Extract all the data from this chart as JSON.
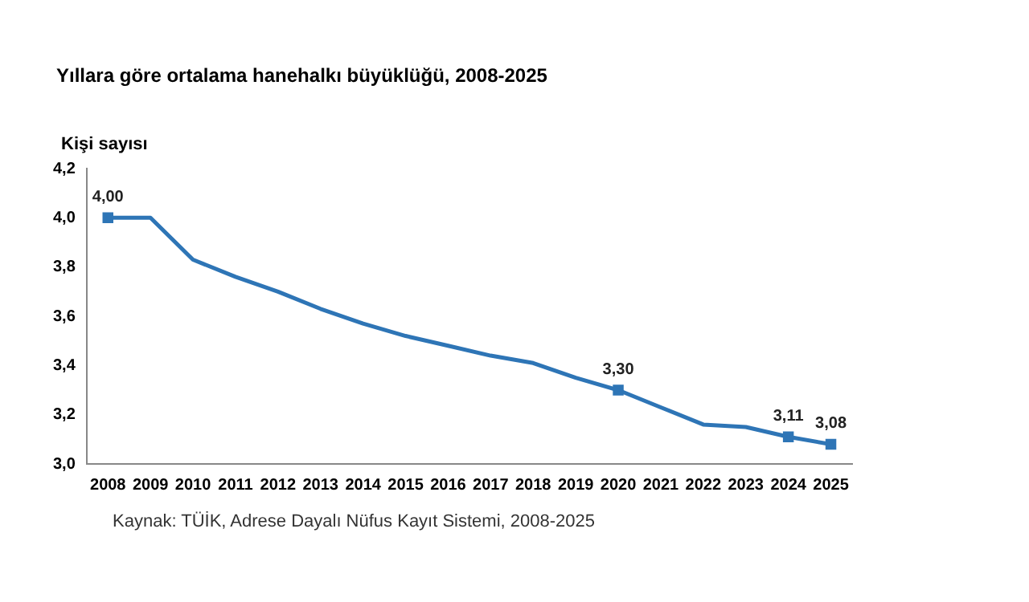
{
  "chart_data": {
    "type": "line",
    "title": "Yıllara göre ortalama hanehalkı büyüklüğü, 2008-2025",
    "ylabel": "Kişi sayısı",
    "categories": [
      "2008",
      "2009",
      "2010",
      "2011",
      "2012",
      "2013",
      "2014",
      "2015",
      "2016",
      "2017",
      "2018",
      "2019",
      "2020",
      "2021",
      "2022",
      "2023",
      "2024",
      "2025"
    ],
    "series": [
      {
        "color": "#2e75b6",
        "values": [
          4.0,
          4.0,
          3.83,
          3.76,
          3.7,
          3.63,
          3.57,
          3.52,
          3.48,
          3.44,
          3.41,
          3.35,
          3.3,
          3.23,
          3.16,
          3.15,
          3.11,
          3.08
        ],
        "value_labels": [
          "4,00",
          null,
          null,
          null,
          null,
          null,
          null,
          null,
          null,
          null,
          null,
          null,
          "3,30",
          null,
          null,
          null,
          "3,11",
          "3,08"
        ]
      }
    ],
    "ylim": [
      3.0,
      4.2
    ],
    "yticks": [
      {
        "value": 3.0,
        "label": "3,0"
      },
      {
        "value": 3.2,
        "label": "3,2"
      },
      {
        "value": 3.4,
        "label": "3,4"
      },
      {
        "value": 3.6,
        "label": "3,6"
      },
      {
        "value": 3.8,
        "label": "3,8"
      },
      {
        "value": 4.0,
        "label": "4,0"
      },
      {
        "value": 4.2,
        "label": "4,2"
      }
    ],
    "grid": false,
    "legend": false,
    "line_style": "solid",
    "annotations": [
      "Kaynak: TÜİK, Adrese Dayalı Nüfus Kayıt Sistemi, 2008-2025"
    ]
  }
}
